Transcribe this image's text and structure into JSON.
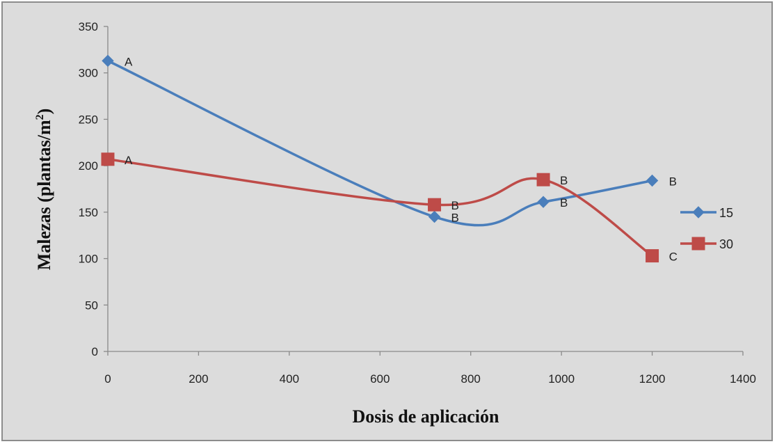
{
  "chart_data": {
    "type": "line",
    "title": "",
    "xlabel": "Dosis de aplicación",
    "ylabel_main": "Malezas (plantas/m",
    "ylabel_sup": "2",
    "ylabel_end": ")",
    "xlim": [
      0,
      1400
    ],
    "ylim": [
      0,
      350
    ],
    "x_ticks": [
      0,
      200,
      400,
      600,
      800,
      1000,
      1200,
      1400
    ],
    "y_ticks": [
      0,
      50,
      100,
      150,
      200,
      250,
      300,
      350
    ],
    "grid": false,
    "smooth": true,
    "legend_position": "right",
    "series": [
      {
        "name": "15",
        "color": "#4a7ebb",
        "marker": "diamond",
        "x": [
          0,
          720,
          960,
          1200
        ],
        "y": [
          313,
          145,
          161,
          184
        ],
        "labels": [
          "A",
          "B",
          "B",
          "B"
        ]
      },
      {
        "name": "30",
        "color": "#be4b48",
        "marker": "square",
        "x": [
          0,
          720,
          960,
          1200
        ],
        "y": [
          207,
          158,
          185,
          103
        ],
        "labels": [
          "A",
          "B",
          "B",
          "C"
        ]
      }
    ]
  }
}
